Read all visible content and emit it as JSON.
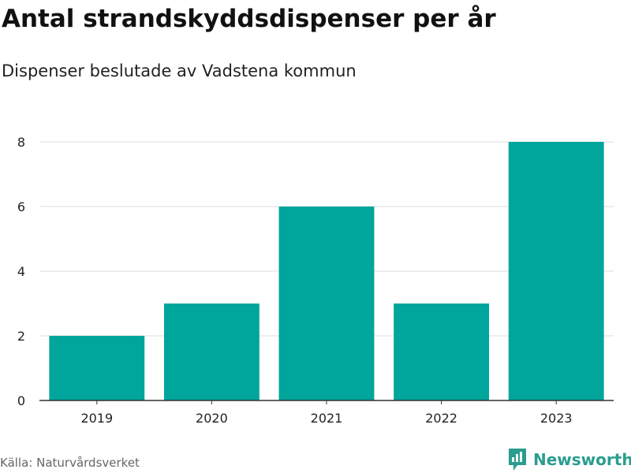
{
  "colors": {
    "bar": "#00a59b",
    "grid": "#dddddd",
    "axis": "#333333",
    "brand": "#2a9d8f"
  },
  "chart_data": {
    "type": "bar",
    "title": "Antal strandskyddsdispenser per år",
    "subtitle": "Dispenser beslutade av Vadstena kommun",
    "categories": [
      "2019",
      "2020",
      "2021",
      "2022",
      "2023"
    ],
    "values": [
      2,
      3,
      6,
      3,
      8
    ],
    "yticks": [
      "0",
      "2",
      "4",
      "6",
      "8"
    ],
    "ylim": [
      0,
      8
    ],
    "xlabel": "",
    "ylabel": "",
    "grid": true
  },
  "footer": {
    "source": "Källa: Naturvårdsverket",
    "brand": "Newsworthy",
    "brand_icon": "newsworthy-logo-icon"
  }
}
